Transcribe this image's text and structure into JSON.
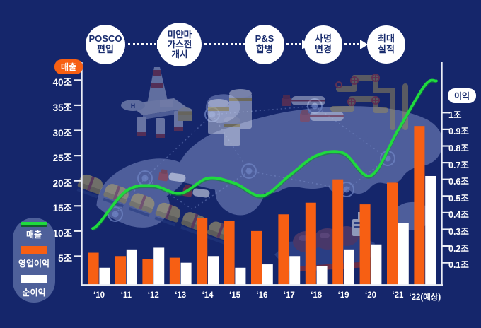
{
  "timeline": {
    "milestones": [
      {
        "label": "POSCO\n편입"
      },
      {
        "label": "미얀마\n가스전\n개시"
      },
      {
        "label": "P&S\n합병"
      },
      {
        "label": "사명\n변경"
      },
      {
        "label": "최대\n실적"
      }
    ]
  },
  "axis_pills": {
    "left": "매출",
    "right": "이익"
  },
  "axes": {
    "left_tick_labels": [
      "40조",
      "35조",
      "30조",
      "25조",
      "20조",
      "15조",
      "10조",
      "5조"
    ],
    "right_tick_labels": [
      "1조",
      "0.9조",
      "0.8조",
      "0.7조",
      "0.6조",
      "0.5조",
      "0.4조",
      "0.3조",
      "0.2조",
      "0.1조"
    ]
  },
  "legend": {
    "items": [
      {
        "name": "매출",
        "type": "line",
        "color": "#1FDA3E"
      },
      {
        "name": "영업이익",
        "type": "bar",
        "color": "#F75F13"
      },
      {
        "name": "순이익",
        "type": "bar",
        "color": "#FFFFFF"
      }
    ]
  },
  "chart_data": {
    "type": "combo",
    "categories": [
      "‘10",
      "‘11",
      "‘12",
      "‘13",
      "‘14",
      "‘15",
      "‘16",
      "‘17",
      "‘18",
      "‘19",
      "‘20",
      "‘21",
      "‘22(예상)"
    ],
    "series": [
      {
        "name": "매출",
        "type": "line",
        "axis": "left",
        "unit": "조",
        "color": "#1FDA3E",
        "values": [
          11.5,
          18,
          19,
          17.5,
          20.5,
          19.5,
          17,
          21,
          25,
          25.5,
          21,
          30,
          39
        ]
      },
      {
        "name": "영업이익",
        "type": "bar",
        "axis": "right",
        "unit": "조",
        "color": "#F75F13",
        "values": [
          0.16,
          0.14,
          0.12,
          0.13,
          0.37,
          0.35,
          0.29,
          0.39,
          0.46,
          0.6,
          0.45,
          0.58,
          0.92
        ]
      },
      {
        "name": "순이익",
        "type": "bar",
        "axis": "right",
        "unit": "조",
        "color": "#FFFFFF",
        "values": [
          0.07,
          0.18,
          0.19,
          0.1,
          0.14,
          0.07,
          0.09,
          0.14,
          0.08,
          0.18,
          0.21,
          0.34,
          0.62
        ]
      }
    ],
    "left_axis": {
      "label": "매출",
      "unit": "조",
      "ticks": [
        40,
        35,
        30,
        25,
        20,
        15,
        10,
        5
      ],
      "range": [
        0,
        42
      ],
      "grid": false
    },
    "right_axis": {
      "label": "이익",
      "unit": "조",
      "ticks": [
        1,
        0.9,
        0.8,
        0.7,
        0.6,
        0.5,
        0.4,
        0.3,
        0.2,
        0.1
      ],
      "range": [
        0,
        1.06
      ],
      "grid": false
    },
    "legend_position": "left-bottom"
  },
  "decor": {
    "helipad_label": "H",
    "icons": [
      "world-map",
      "oil-rig",
      "storage-tanks",
      "tanker-trucks",
      "gas-pipeline",
      "tank-train",
      "lng-carrier-ship",
      "network-nodes"
    ]
  },
  "colors": {
    "background": "#15266B",
    "map": "#8796CB",
    "axis": "#EAEDF5",
    "revenue_line": "#1FDA3E",
    "operating_profit_bar": "#F75F13",
    "net_profit_bar": "#FFFFFF",
    "timeline_text": "#1A2D6E",
    "legend_background": "#4E609A"
  }
}
